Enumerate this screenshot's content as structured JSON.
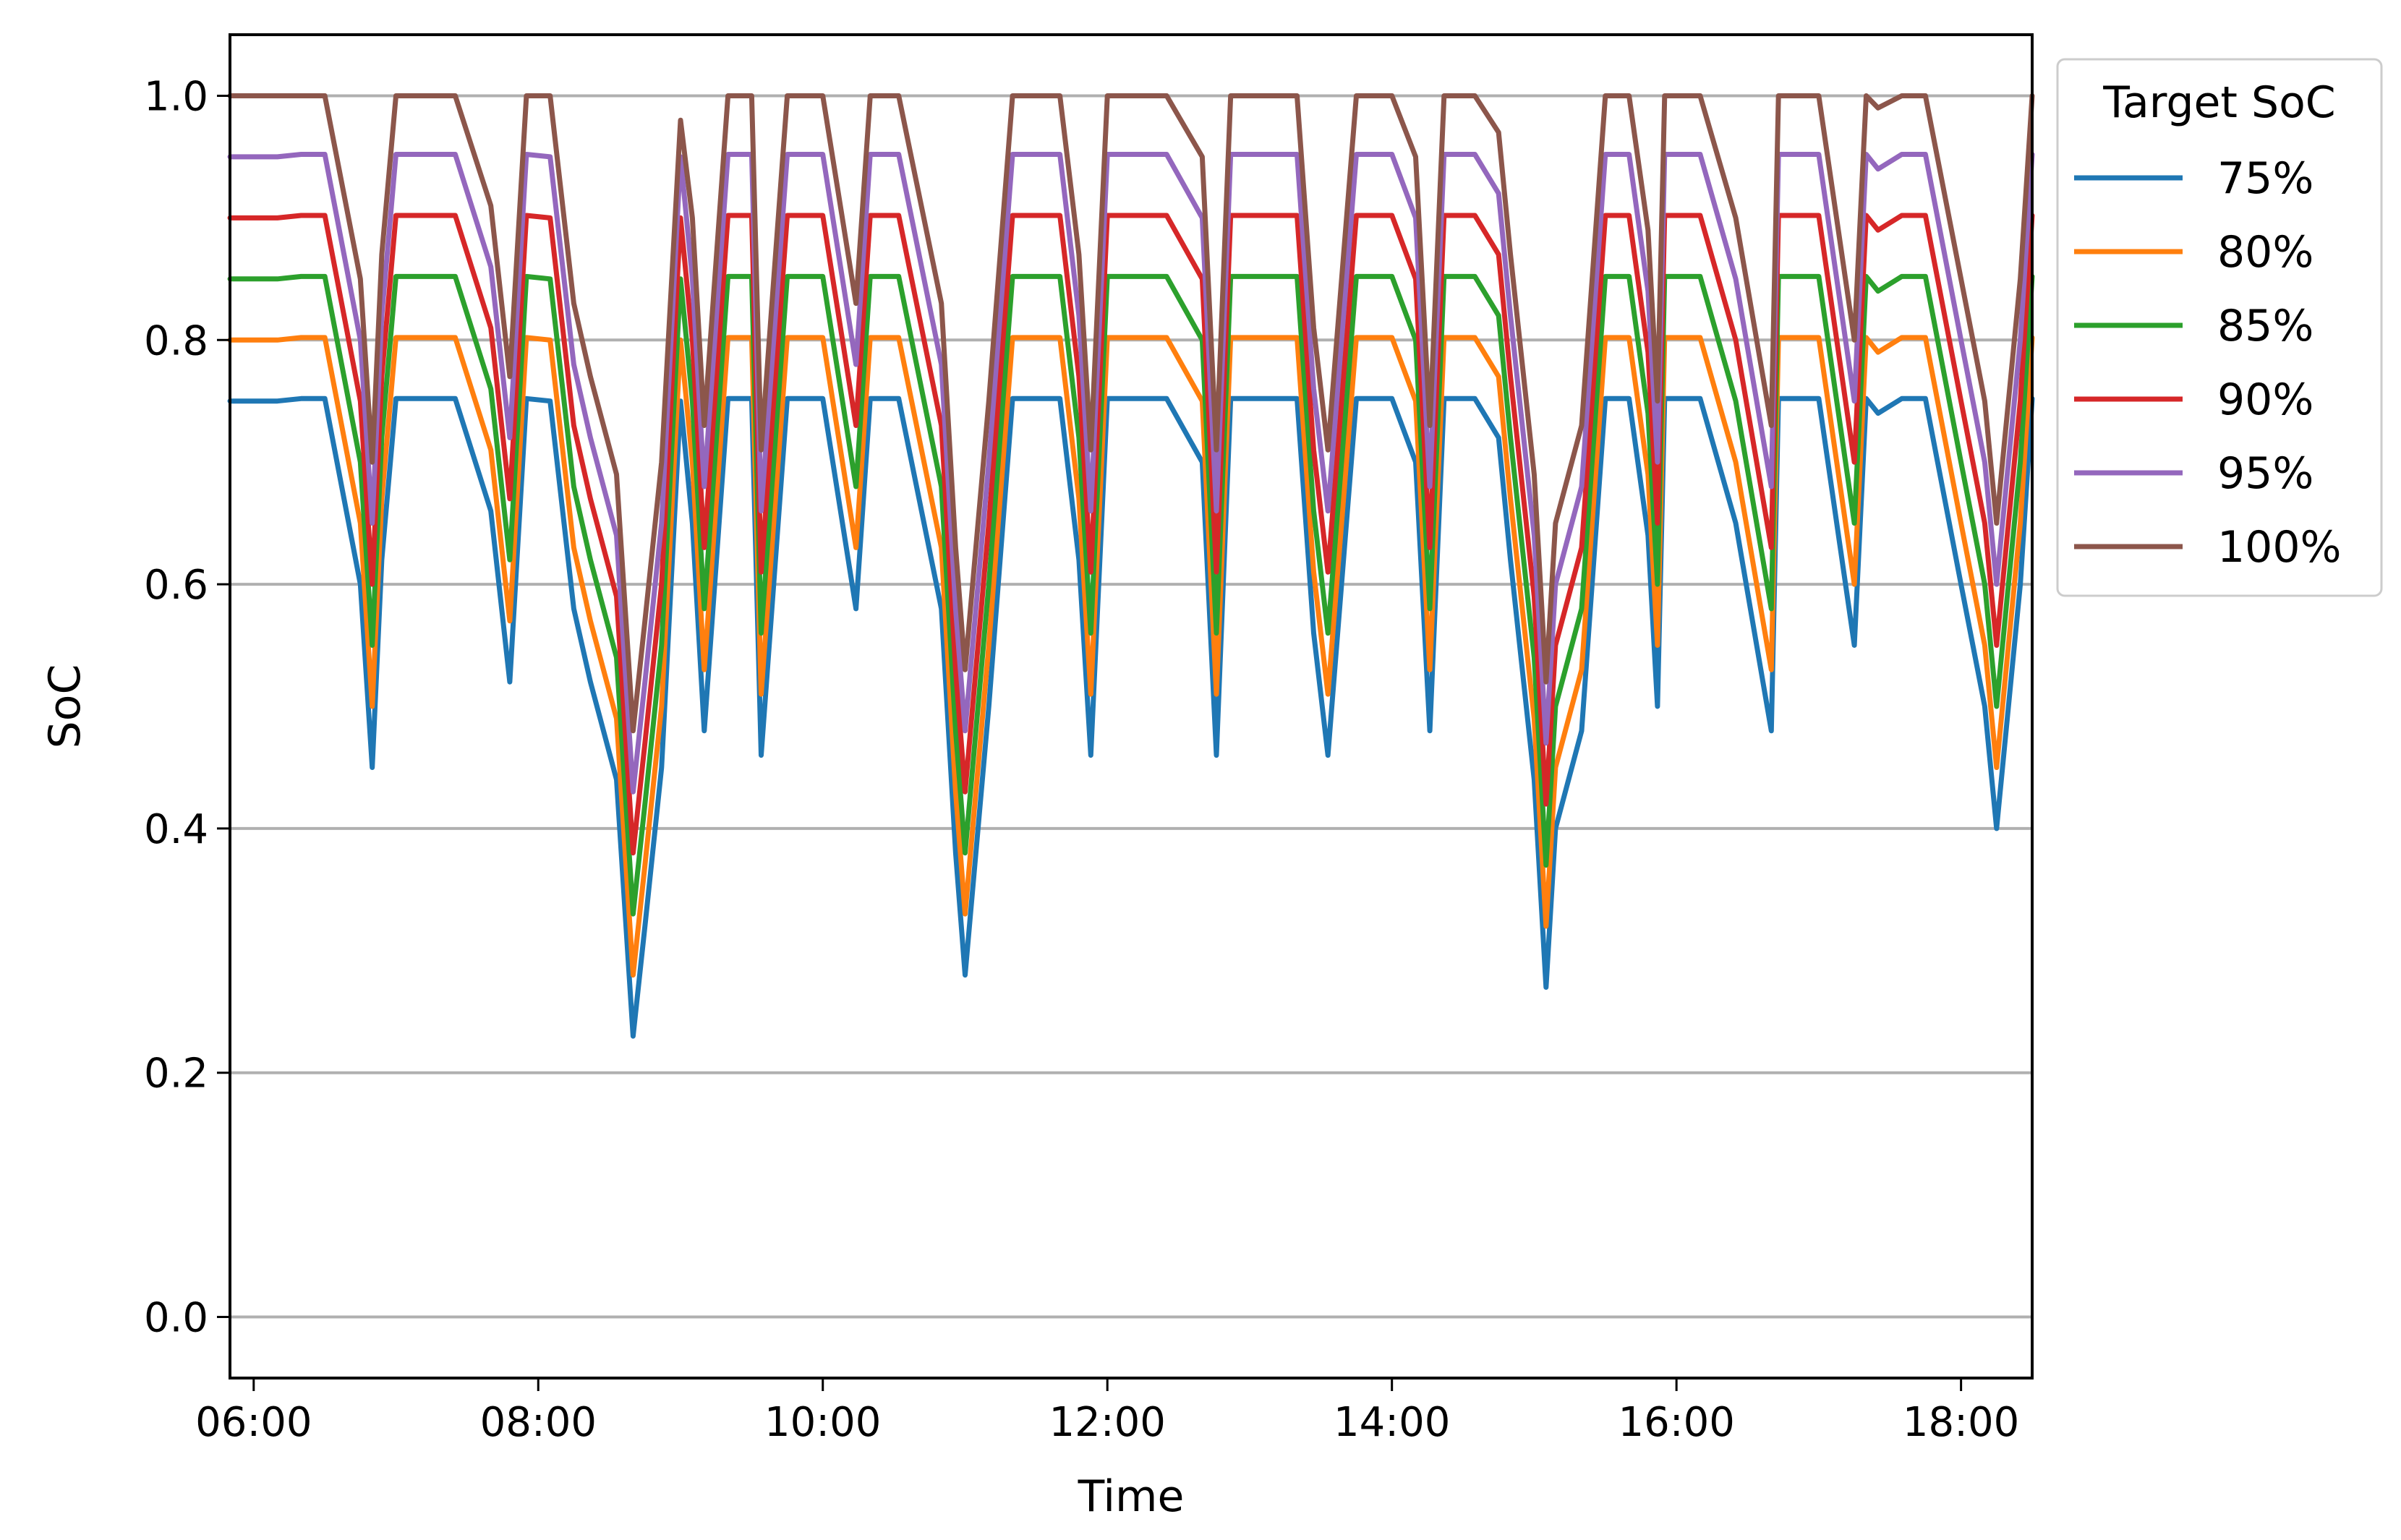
{
  "chart_data": {
    "type": "line",
    "title": "",
    "xlabel": "Time",
    "ylabel": "SoC",
    "xlim": [
      "05:50",
      "18:30"
    ],
    "ylim": [
      -0.05,
      1.05
    ],
    "x_ticks": [
      "06:00",
      "08:00",
      "10:00",
      "12:00",
      "14:00",
      "16:00",
      "18:00"
    ],
    "y_ticks": [
      "0.0",
      "0.2",
      "0.4",
      "0.6",
      "0.8",
      "1.0"
    ],
    "grid": "y-axis",
    "legend": {
      "title": "Target SoC",
      "placement": "outside-upper-right"
    },
    "x": [
      "05:50",
      "06:10",
      "06:20",
      "06:30",
      "06:45",
      "06:50",
      "06:54",
      "07:00",
      "07:10",
      "07:25",
      "07:40",
      "07:48",
      "07:55",
      "08:05",
      "08:15",
      "08:22",
      "08:33",
      "08:40",
      "08:45",
      "08:52",
      "09:00",
      "09:05",
      "09:10",
      "09:20",
      "09:30",
      "09:34",
      "09:45",
      "10:00",
      "10:14",
      "10:20",
      "10:32",
      "10:50",
      "10:56",
      "11:00",
      "11:10",
      "11:20",
      "11:30",
      "11:40",
      "11:48",
      "11:53",
      "12:00",
      "12:15",
      "12:25",
      "12:40",
      "12:46",
      "12:52",
      "13:05",
      "13:20",
      "13:27",
      "13:33",
      "13:45",
      "14:00",
      "14:10",
      "14:16",
      "14:22",
      "14:35",
      "14:45",
      "14:50",
      "15:00",
      "15:05",
      "15:09",
      "15:20",
      "15:30",
      "15:40",
      "15:48",
      "15:52",
      "15:55",
      "16:10",
      "16:25",
      "16:40",
      "16:43",
      "16:50",
      "17:00",
      "17:15",
      "17:20",
      "17:25",
      "17:35",
      "17:45",
      "18:00",
      "18:10",
      "18:15",
      "18:25",
      "18:30"
    ],
    "series": [
      {
        "name": "75%",
        "color": "#1f77b4",
        "values": [
          0.75,
          0.75,
          0.752,
          0.752,
          0.6,
          0.45,
          0.62,
          0.752,
          0.752,
          0.752,
          0.66,
          0.52,
          0.752,
          0.75,
          0.58,
          0.52,
          0.44,
          0.23,
          0.32,
          0.45,
          0.75,
          0.65,
          0.48,
          0.752,
          0.752,
          0.46,
          0.752,
          0.752,
          0.58,
          0.752,
          0.752,
          0.58,
          0.38,
          0.28,
          0.5,
          0.752,
          0.752,
          0.752,
          0.62,
          0.46,
          0.752,
          0.752,
          0.752,
          0.7,
          0.46,
          0.752,
          0.752,
          0.752,
          0.56,
          0.46,
          0.752,
          0.752,
          0.7,
          0.48,
          0.752,
          0.752,
          0.72,
          0.62,
          0.44,
          0.27,
          0.4,
          0.48,
          0.752,
          0.752,
          0.64,
          0.5,
          0.752,
          0.752,
          0.65,
          0.48,
          0.752,
          0.752,
          0.752,
          0.55,
          0.752,
          0.74,
          0.752,
          0.752,
          0.6,
          0.5,
          0.4,
          0.6,
          0.752
        ]
      },
      {
        "name": "80%",
        "color": "#ff7f0e",
        "values": [
          0.8,
          0.8,
          0.802,
          0.802,
          0.65,
          0.5,
          0.67,
          0.802,
          0.802,
          0.802,
          0.71,
          0.57,
          0.802,
          0.8,
          0.63,
          0.57,
          0.49,
          0.28,
          0.37,
          0.5,
          0.8,
          0.7,
          0.53,
          0.802,
          0.802,
          0.51,
          0.802,
          0.802,
          0.63,
          0.802,
          0.802,
          0.63,
          0.43,
          0.33,
          0.55,
          0.802,
          0.802,
          0.802,
          0.67,
          0.51,
          0.802,
          0.802,
          0.802,
          0.75,
          0.51,
          0.802,
          0.802,
          0.802,
          0.61,
          0.51,
          0.802,
          0.802,
          0.75,
          0.53,
          0.802,
          0.802,
          0.77,
          0.67,
          0.49,
          0.32,
          0.45,
          0.53,
          0.802,
          0.802,
          0.69,
          0.55,
          0.802,
          0.802,
          0.7,
          0.53,
          0.802,
          0.802,
          0.802,
          0.6,
          0.802,
          0.79,
          0.802,
          0.802,
          0.65,
          0.55,
          0.45,
          0.65,
          0.802
        ]
      },
      {
        "name": "85%",
        "color": "#2ca02c",
        "values": [
          0.85,
          0.85,
          0.852,
          0.852,
          0.7,
          0.55,
          0.72,
          0.852,
          0.852,
          0.852,
          0.76,
          0.62,
          0.852,
          0.85,
          0.68,
          0.62,
          0.54,
          0.33,
          0.42,
          0.55,
          0.85,
          0.75,
          0.58,
          0.852,
          0.852,
          0.56,
          0.852,
          0.852,
          0.68,
          0.852,
          0.852,
          0.68,
          0.48,
          0.38,
          0.6,
          0.852,
          0.852,
          0.852,
          0.72,
          0.56,
          0.852,
          0.852,
          0.852,
          0.8,
          0.56,
          0.852,
          0.852,
          0.852,
          0.66,
          0.56,
          0.852,
          0.852,
          0.8,
          0.58,
          0.852,
          0.852,
          0.82,
          0.72,
          0.54,
          0.37,
          0.5,
          0.58,
          0.852,
          0.852,
          0.74,
          0.6,
          0.852,
          0.852,
          0.75,
          0.58,
          0.852,
          0.852,
          0.852,
          0.65,
          0.852,
          0.84,
          0.852,
          0.852,
          0.7,
          0.6,
          0.5,
          0.7,
          0.852
        ]
      },
      {
        "name": "90%",
        "color": "#d62728",
        "values": [
          0.9,
          0.9,
          0.902,
          0.902,
          0.75,
          0.6,
          0.77,
          0.902,
          0.902,
          0.902,
          0.81,
          0.67,
          0.902,
          0.9,
          0.73,
          0.67,
          0.59,
          0.38,
          0.47,
          0.6,
          0.9,
          0.8,
          0.63,
          0.902,
          0.902,
          0.61,
          0.902,
          0.902,
          0.73,
          0.902,
          0.902,
          0.73,
          0.53,
          0.43,
          0.65,
          0.902,
          0.902,
          0.902,
          0.77,
          0.61,
          0.902,
          0.902,
          0.902,
          0.85,
          0.61,
          0.902,
          0.902,
          0.902,
          0.71,
          0.61,
          0.902,
          0.902,
          0.85,
          0.63,
          0.902,
          0.902,
          0.87,
          0.77,
          0.59,
          0.42,
          0.55,
          0.63,
          0.902,
          0.902,
          0.79,
          0.65,
          0.902,
          0.902,
          0.8,
          0.63,
          0.902,
          0.902,
          0.902,
          0.7,
          0.902,
          0.89,
          0.902,
          0.902,
          0.75,
          0.65,
          0.55,
          0.75,
          0.902
        ]
      },
      {
        "name": "95%",
        "color": "#9467bd",
        "values": [
          0.95,
          0.95,
          0.952,
          0.952,
          0.8,
          0.65,
          0.82,
          0.952,
          0.952,
          0.952,
          0.86,
          0.72,
          0.952,
          0.95,
          0.78,
          0.72,
          0.64,
          0.43,
          0.52,
          0.65,
          0.95,
          0.85,
          0.68,
          0.952,
          0.952,
          0.66,
          0.952,
          0.952,
          0.78,
          0.952,
          0.952,
          0.78,
          0.58,
          0.48,
          0.7,
          0.952,
          0.952,
          0.952,
          0.82,
          0.66,
          0.952,
          0.952,
          0.952,
          0.9,
          0.66,
          0.952,
          0.952,
          0.952,
          0.76,
          0.66,
          0.952,
          0.952,
          0.9,
          0.68,
          0.952,
          0.952,
          0.92,
          0.82,
          0.64,
          0.47,
          0.6,
          0.68,
          0.952,
          0.952,
          0.84,
          0.7,
          0.952,
          0.952,
          0.85,
          0.68,
          0.952,
          0.952,
          0.952,
          0.75,
          0.952,
          0.94,
          0.952,
          0.952,
          0.8,
          0.7,
          0.6,
          0.8,
          0.952
        ]
      },
      {
        "name": "100%",
        "color": "#8c564b",
        "values": [
          1.0,
          1.0,
          1.0,
          1.0,
          0.85,
          0.7,
          0.87,
          1.0,
          1.0,
          1.0,
          0.91,
          0.77,
          1.0,
          1.0,
          0.83,
          0.77,
          0.69,
          0.48,
          0.57,
          0.7,
          0.98,
          0.9,
          0.73,
          1.0,
          1.0,
          0.71,
          1.0,
          1.0,
          0.83,
          1.0,
          1.0,
          0.83,
          0.63,
          0.53,
          0.75,
          1.0,
          1.0,
          1.0,
          0.87,
          0.71,
          1.0,
          1.0,
          1.0,
          0.95,
          0.71,
          1.0,
          1.0,
          1.0,
          0.81,
          0.71,
          1.0,
          1.0,
          0.95,
          0.73,
          1.0,
          1.0,
          0.97,
          0.87,
          0.69,
          0.52,
          0.65,
          0.73,
          1.0,
          1.0,
          0.89,
          0.75,
          1.0,
          1.0,
          0.9,
          0.73,
          1.0,
          1.0,
          1.0,
          0.8,
          1.0,
          0.99,
          1.0,
          1.0,
          0.85,
          0.75,
          0.65,
          0.85,
          1.0
        ]
      }
    ]
  }
}
